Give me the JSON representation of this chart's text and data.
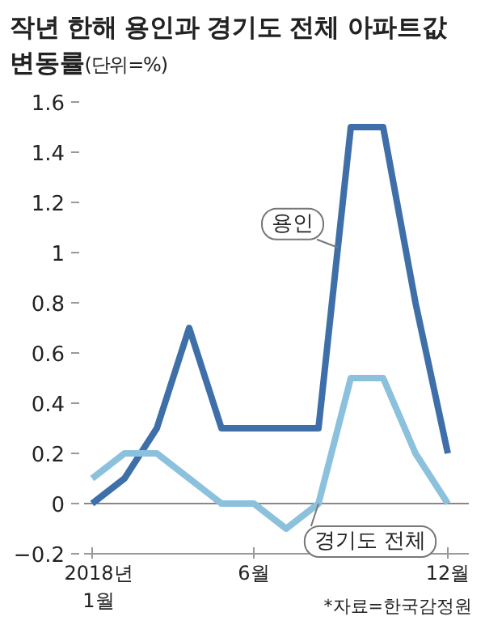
{
  "chart_data": {
    "type": "line",
    "title": "작년 한해 용인과 경기도 전체 아파트값 변동률",
    "subtitle": "(단위=%)",
    "categories": [
      "2018년 1월",
      null,
      null,
      null,
      null,
      "6월",
      null,
      null,
      null,
      null,
      null,
      "12월"
    ],
    "series": [
      {
        "name": "용인",
        "color": "#3f6fa9",
        "values": [
          0,
          0.1,
          0.3,
          0.7,
          0.3,
          0.3,
          0.3,
          0.3,
          1.5,
          1.5,
          0.8,
          0.2
        ]
      },
      {
        "name": "경기도 전체",
        "color": "#8cc1dd",
        "values": [
          0.1,
          0.2,
          0.2,
          0.1,
          0,
          0,
          -0.1,
          0,
          0.5,
          0.5,
          0.2,
          0
        ]
      }
    ],
    "ylim": [
      -0.2,
      1.6
    ],
    "yticks": [
      {
        "value": -0.2,
        "label": "−0.2"
      },
      0,
      0.2,
      0.4,
      0.6,
      0.8,
      1,
      1.2,
      1.4,
      1.6
    ],
    "ref_lines": [
      {
        "axis": "y",
        "value": 0,
        "color": "#888888"
      }
    ],
    "grid": false,
    "legend": false,
    "marker": "none",
    "line_style": "solid",
    "annotations": [
      "*자료=한국감정원"
    ]
  }
}
